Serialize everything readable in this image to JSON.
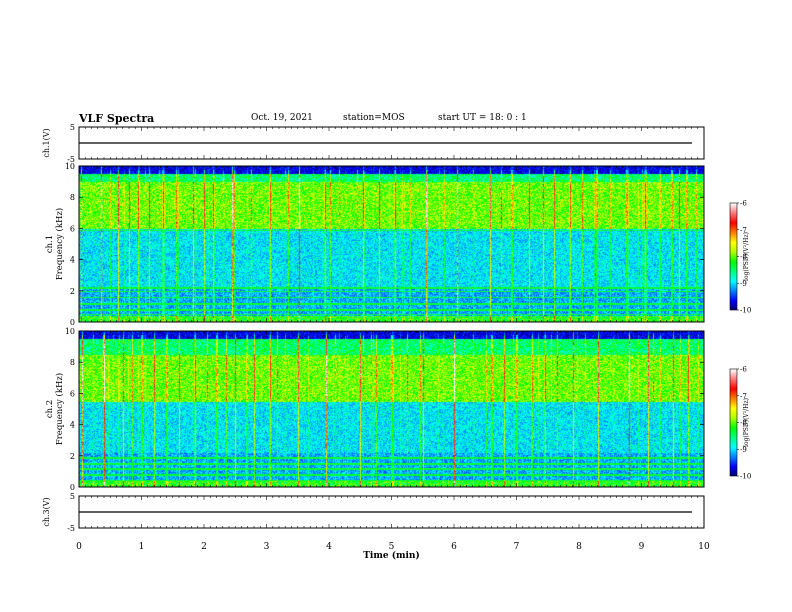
{
  "header": {
    "title": "VLF Spectra",
    "date": "Oct. 19, 2021",
    "station": "station=MOS",
    "start_ut": "start UT =  18: 0  : 1"
  },
  "colors": {
    "frame": "#000000",
    "background": "#ffffff",
    "colormap": [
      "#000060",
      "#0000ff",
      "#0080ff",
      "#00ffff",
      "#00ff80",
      "#00ff00",
      "#b0ff00",
      "#ffff00",
      "#ff8000",
      "#ff0000",
      "#ff7777",
      "#ffffff"
    ]
  },
  "chart_data": [
    {
      "type": "line",
      "id": "ch1-waveform",
      "ylabel": "ch.1(V)",
      "ylim": [
        -5,
        5
      ],
      "y_ticks": [
        "5",
        "-5"
      ],
      "xlim": [
        0,
        10
      ],
      "waveform_level": 0
    },
    {
      "type": "heatmap",
      "id": "ch1-spectrogram",
      "ylabel": "ch.1\nFrequency (kHz)",
      "ylim": [
        0,
        10
      ],
      "y_ticks": [
        "0",
        "2",
        "4",
        "6",
        "8",
        "10"
      ],
      "xlim": [
        0,
        10
      ],
      "colorbar": {
        "label": "log(PSD)(V²/Hz)",
        "range": [
          -10,
          -6
        ],
        "ticks": [
          "-6",
          "-7",
          "-8",
          "-9",
          "-10"
        ]
      },
      "intense_band_khz": [
        6,
        9
      ],
      "strong_sferics_min": [
        0.03,
        0.35,
        0.62,
        0.95,
        1.35,
        1.82,
        2.15,
        2.45,
        3.05,
        3.52,
        3.93,
        4.55,
        5.05,
        5.55,
        6.05,
        6.58,
        6.92,
        7.42,
        7.85,
        8.28,
        8.76,
        9.05,
        9.48,
        9.72
      ],
      "weak_sferics_min": [
        0.2,
        0.5,
        0.8,
        1.12,
        1.55,
        2.0,
        2.3,
        2.75,
        3.3,
        3.75,
        4.2,
        4.8,
        5.3,
        5.8,
        6.3,
        6.75,
        7.2,
        7.6,
        8.05,
        8.5,
        8.95,
        9.3,
        9.6
      ],
      "narrowband_lines_khz": [
        0.5,
        0.8,
        1.2,
        1.6,
        2.0,
        2.2,
        5.9
      ]
    },
    {
      "type": "heatmap",
      "id": "ch2-spectrogram",
      "ylabel": "ch.2\nFrequency (kHz)",
      "ylim": [
        0,
        10
      ],
      "y_ticks": [
        "0",
        "2",
        "4",
        "6",
        "8",
        "10"
      ],
      "xlim": [
        0,
        10
      ],
      "colorbar": {
        "label": "log(PSD)(V²/Hz)",
        "range": [
          -10,
          -6
        ],
        "ticks": [
          "-6",
          "-7",
          "-8",
          "-9",
          "-10"
        ]
      },
      "intense_band_khz": [
        5.5,
        8.5
      ],
      "strong_sferics_min": [
        0.05,
        0.4,
        0.7,
        1.0,
        1.4,
        1.85,
        2.2,
        2.5,
        3.05,
        3.5,
        3.95,
        4.5,
        5.0,
        5.5,
        6.0,
        6.6,
        7.0,
        7.45,
        7.9,
        8.3,
        8.8,
        9.1,
        9.5,
        9.75
      ],
      "weak_sferics_min": [
        0.22,
        0.55,
        0.85,
        1.2,
        1.6,
        2.05,
        2.35,
        2.8,
        3.3,
        3.8,
        4.25,
        4.75,
        5.25,
        5.75,
        6.3,
        6.8,
        7.25,
        7.65,
        8.1,
        8.55,
        8.95,
        9.3,
        9.62
      ],
      "narrowband_lines_khz": [
        0.4,
        0.8,
        1.2,
        1.5,
        1.9
      ]
    },
    {
      "type": "line",
      "id": "ch3-waveform",
      "ylabel": "ch.3(V)",
      "ylim": [
        -5,
        5
      ],
      "y_ticks": [
        "5",
        "-5"
      ],
      "xlim": [
        0,
        10
      ],
      "xlabel": "Time (min)",
      "x_ticks": [
        "0",
        "1",
        "2",
        "3",
        "4",
        "5",
        "6",
        "7",
        "8",
        "9",
        "10"
      ],
      "waveform_level": 0
    }
  ]
}
